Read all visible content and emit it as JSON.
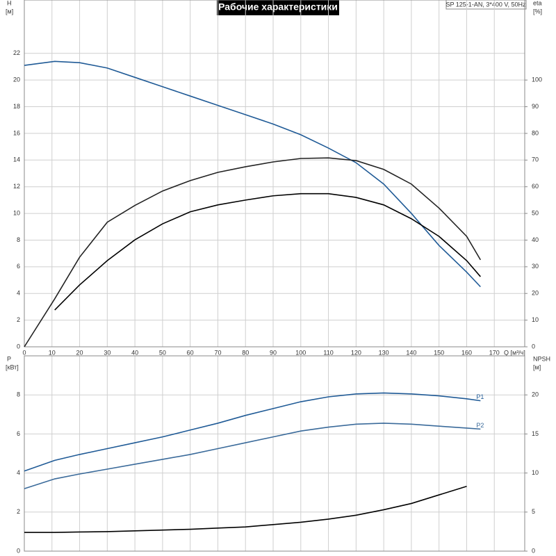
{
  "chart_data": [
    {
      "type": "line",
      "title": "Рабочие характеристики",
      "info": "SP 125-1-AN, 3*400 V, 50Hz",
      "ylabel": "H",
      "yunit": "[м]",
      "y2label": "eta",
      "y2unit": "[%]",
      "xlabel": "Q [м³/ч]",
      "x": [
        0,
        11,
        20,
        30,
        40,
        50,
        60,
        70,
        80,
        90,
        100,
        110,
        120,
        130,
        140,
        150,
        160,
        165
      ],
      "xlim": [
        0,
        181
      ],
      "xticks": [
        0,
        10,
        20,
        30,
        40,
        50,
        60,
        70,
        80,
        90,
        100,
        110,
        120,
        130,
        140,
        150,
        160,
        170
      ],
      "show_xtick_labels": true,
      "ylim": [
        0,
        26
      ],
      "yticks": [
        0,
        2,
        4,
        6,
        8,
        10,
        12,
        14,
        16,
        18,
        20,
        22
      ],
      "y2lim": [
        0,
        130
      ],
      "y2ticks": [
        0,
        10,
        20,
        30,
        40,
        50,
        60,
        70,
        80,
        90,
        100
      ],
      "grid": true,
      "series": [
        {
          "color": "#1f5a96",
          "axis": "y",
          "values": [
            21.1,
            21.4,
            21.3,
            20.9,
            20.2,
            19.5,
            18.8,
            18.1,
            17.4,
            16.7,
            15.9,
            14.9,
            13.8,
            12.2,
            10.0,
            7.6,
            5.6,
            4.5
          ]
        },
        {
          "color": "#222222",
          "axis": "y2",
          "values": [
            0,
            18,
            33.6,
            46.7,
            53,
            58.4,
            62.3,
            65.4,
            67.5,
            69.3,
            70.6,
            70.8,
            69.8,
            66.5,
            61,
            52,
            41.4,
            32.6
          ]
        },
        {
          "color": "#000000",
          "axis": "y2",
          "values": [
            null,
            13.8,
            23.2,
            32.3,
            40.1,
            46.1,
            50.6,
            53.2,
            55,
            56.6,
            57.4,
            57.4,
            56,
            53.2,
            48,
            41.4,
            32.3,
            26.3
          ]
        }
      ]
    },
    {
      "type": "line",
      "ylabel": "P",
      "yunit": "[кВт]",
      "y2label": "NPSH",
      "y2unit": "[м]",
      "x": [
        0,
        11,
        20,
        30,
        40,
        50,
        60,
        70,
        80,
        90,
        100,
        110,
        120,
        130,
        140,
        150,
        160,
        165
      ],
      "xlim": [
        0,
        181
      ],
      "xticks": [
        0,
        10,
        20,
        30,
        40,
        50,
        60,
        70,
        80,
        90,
        100,
        110,
        120,
        130,
        140,
        150,
        160,
        170
      ],
      "show_xtick_labels": false,
      "ylim": [
        0,
        10
      ],
      "yticks": [
        0,
        2,
        4,
        6,
        8
      ],
      "y2lim": [
        0,
        25
      ],
      "y2ticks": [
        0,
        5,
        10,
        15,
        20
      ],
      "grid": true,
      "series": [
        {
          "name": "P1",
          "color": "#1f5a96",
          "axis": "y",
          "values": [
            4.1,
            4.65,
            4.95,
            5.25,
            5.55,
            5.85,
            6.2,
            6.55,
            6.95,
            7.3,
            7.65,
            7.9,
            8.05,
            8.1,
            8.05,
            7.95,
            7.8,
            7.7
          ]
        },
        {
          "name": "P2",
          "color": "#3a6a9a",
          "axis": "y",
          "values": [
            3.2,
            3.7,
            3.95,
            4.2,
            4.45,
            4.7,
            4.95,
            5.25,
            5.55,
            5.85,
            6.15,
            6.35,
            6.5,
            6.55,
            6.5,
            6.4,
            6.3,
            6.25
          ]
        },
        {
          "color": "#000000",
          "axis": "y2",
          "values": [
            2.4,
            2.4,
            2.45,
            2.5,
            2.6,
            2.7,
            2.8,
            2.95,
            3.1,
            3.4,
            3.7,
            4.1,
            4.6,
            5.3,
            6.1,
            7.2,
            8.3,
            null
          ]
        }
      ]
    }
  ]
}
